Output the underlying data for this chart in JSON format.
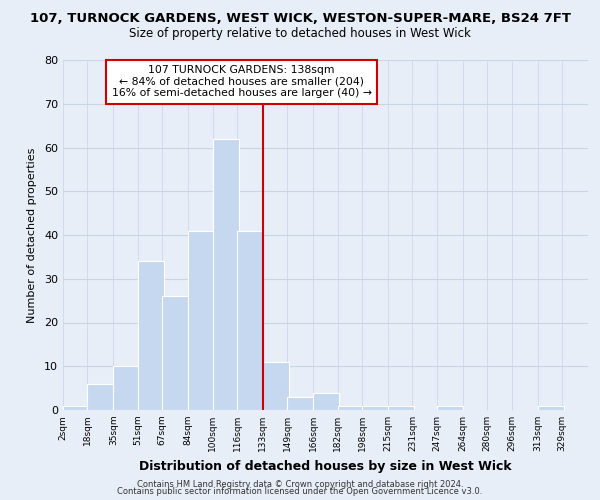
{
  "title1": "107, TURNOCK GARDENS, WEST WICK, WESTON-SUPER-MARE, BS24 7FT",
  "title2": "Size of property relative to detached houses in West Wick",
  "xlabel": "Distribution of detached houses by size in West Wick",
  "ylabel": "Number of detached properties",
  "bar_left_edges": [
    2,
    18,
    35,
    51,
    67,
    84,
    100,
    116,
    133,
    149,
    166,
    182,
    198,
    215,
    231,
    247,
    264,
    280,
    296,
    313
  ],
  "bar_heights": [
    1,
    6,
    10,
    34,
    26,
    41,
    62,
    41,
    11,
    3,
    4,
    1,
    1,
    1,
    0,
    1,
    0,
    0,
    0,
    1
  ],
  "tick_labels": [
    "2sqm",
    "18sqm",
    "35sqm",
    "51sqm",
    "67sqm",
    "84sqm",
    "100sqm",
    "116sqm",
    "133sqm",
    "149sqm",
    "166sqm",
    "182sqm",
    "198sqm",
    "215sqm",
    "231sqm",
    "247sqm",
    "264sqm",
    "280sqm",
    "296sqm",
    "313sqm",
    "329sqm"
  ],
  "bar_color": "#c5d8f0",
  "bar_edgecolor": "#ffffff",
  "property_line_x": 133,
  "property_line_color": "#cc0000",
  "ylim": [
    0,
    80
  ],
  "yticks": [
    0,
    10,
    20,
    30,
    40,
    50,
    60,
    70,
    80
  ],
  "annotation_title": "107 TURNOCK GARDENS: 138sqm",
  "annotation_line1": "← 84% of detached houses are smaller (204)",
  "annotation_line2": "16% of semi-detached houses are larger (40) →",
  "annotation_box_color": "#ffffff",
  "annotation_box_edgecolor": "#cc0000",
  "grid_color": "#c8d4e8",
  "background_color": "#e8eef8",
  "footer1": "Contains HM Land Registry data © Crown copyright and database right 2024.",
  "footer2": "Contains public sector information licensed under the Open Government Licence v3.0."
}
